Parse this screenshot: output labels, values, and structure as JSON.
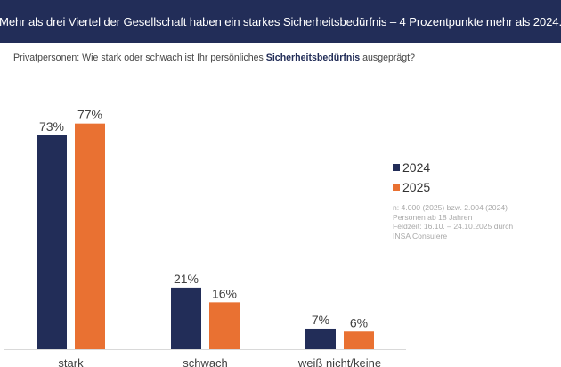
{
  "header": {
    "title": "Mehr als drei Viertel der Gesellschaft haben ein starkes Sicherheitsbedürfnis – 4 Prozentpunkte mehr als 2024."
  },
  "subtitle": {
    "prefix": "Privatpersonen: Wie stark oder schwach ist Ihr persönliches ",
    "bold": "Sicherheitsbedürfnis",
    "suffix": " ausgeprägt?"
  },
  "legend": {
    "items": [
      {
        "label": "2024",
        "color": "#222d58"
      },
      {
        "label": "2025",
        "color": "#e97132"
      }
    ]
  },
  "note": {
    "lines": [
      "n: 4.000 (2025) bzw. 2.004 (2024)",
      "Personen ab 18 Jahren",
      "Feldzeit: 16.10. – 24.10.2025 durch",
      "INSA Consulere"
    ]
  },
  "chart_data": {
    "type": "bar",
    "title": "Mehr als drei Viertel der Gesellschaft haben ein starkes Sicherheitsbedürfnis – 4 Prozentpunkte mehr als 2024.",
    "subtitle": "Privatpersonen: Wie stark oder schwach ist Ihr persönliches Sicherheitsbedürfnis ausgeprägt?",
    "categories": [
      "stark",
      "schwach",
      "weiß nicht/keine"
    ],
    "series": [
      {
        "name": "2024",
        "color": "#222d58",
        "values": [
          73,
          21,
          7
        ]
      },
      {
        "name": "2025",
        "color": "#e97132",
        "values": [
          77,
          16,
          6
        ]
      }
    ],
    "value_suffix": "%",
    "xlabel": "",
    "ylabel": "",
    "ylim": [
      0,
      100
    ],
    "grid": false,
    "legend_position": "right"
  }
}
